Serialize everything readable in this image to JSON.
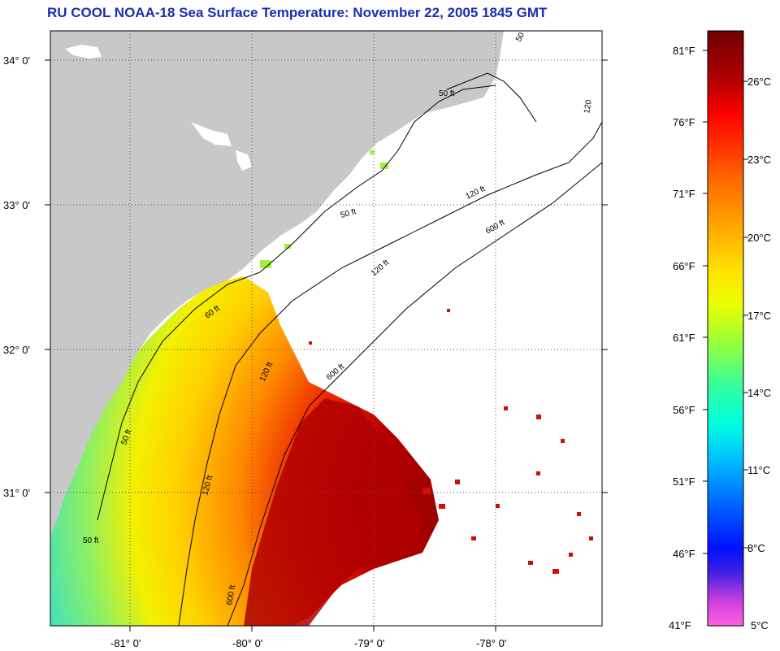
{
  "title": "RU COOL  NOAA-18  Sea Surface Temperature:  November 22, 2005 1845 GMT",
  "map": {
    "latitude_labels": [
      "34° 0'",
      "33° 0'",
      "32° 0'",
      "31° 0'"
    ],
    "longitude_labels": [
      "-81° 0'",
      "-80° 0'",
      "-79° 0'",
      "-78° 0'"
    ],
    "contour_labels": {
      "c50_a": "50 ft",
      "c50_b": "60 ft",
      "c50_c": "50 ft",
      "c50_d": "50 ft",
      "c50_e": "50",
      "c120_a": "120 ft",
      "c120_b": "120 ft",
      "c120_c": "120 ft",
      "c120_d": "120 ft",
      "c120_e": "120",
      "c600_a": "600 ft",
      "c600_b": "600 ft",
      "c600_c": "600 ft",
      "c50_f": "50 ft"
    },
    "colors": {
      "land": "#c8c8c8",
      "ocean_nodata": "#ffffff",
      "title": "#1a2fb0"
    }
  },
  "colorbar": {
    "fahrenheit_labels": [
      "81°F",
      "76°F",
      "71°F",
      "66°F",
      "61°F",
      "56°F",
      "51°F",
      "46°F",
      "41°F"
    ],
    "celsius_labels": [
      "26°C",
      "23°C",
      "20°C",
      "17°C",
      "14°C",
      "11°C",
      "8°C",
      "5°C"
    ],
    "gradient": [
      "#7a0000",
      "#b00000",
      "#ff0000",
      "#ff6a00",
      "#ffb000",
      "#ffe000",
      "#f0ff00",
      "#9cff3a",
      "#30ff9a",
      "#00ffe0",
      "#00c8ff",
      "#0070ff",
      "#0010ff",
      "#2000e0",
      "#a040e0",
      "#ff40e0",
      "#ff60e0"
    ]
  }
}
